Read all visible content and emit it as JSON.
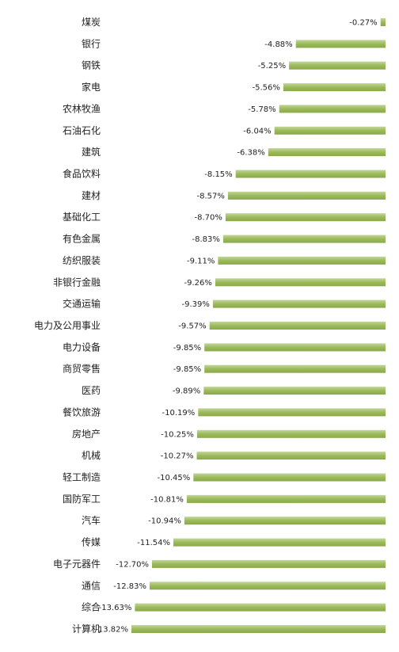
{
  "chart_data": {
    "type": "bar",
    "orientation": "horizontal",
    "categories": [
      "煤炭",
      "银行",
      "钢铁",
      "家电",
      "农林牧渔",
      "石油石化",
      "建筑",
      "食品饮料",
      "建材",
      "基础化工",
      "有色金属",
      "纺织服装",
      "非银行金融",
      "交通运输",
      "电力及公用事业",
      "电力设备",
      "商贸零售",
      "医药",
      "餐饮旅游",
      "房地产",
      "机械",
      "轻工制造",
      "国防军工",
      "汽车",
      "传媒",
      "电子元器件",
      "通信",
      "综合",
      "计算机"
    ],
    "values": [
      -0.27,
      -4.88,
      -5.25,
      -5.56,
      -5.78,
      -6.04,
      -6.38,
      -8.15,
      -8.57,
      -8.7,
      -8.83,
      -9.11,
      -9.26,
      -9.39,
      -9.57,
      -9.85,
      -9.85,
      -9.89,
      -10.19,
      -10.25,
      -10.27,
      -10.45,
      -10.81,
      -10.94,
      -11.54,
      -12.7,
      -12.83,
      -13.63,
      -13.82
    ],
    "value_labels": [
      "-0.27%",
      "-4.88%",
      "-5.25%",
      "-5.56%",
      "-5.78%",
      "-6.04%",
      "-6.38%",
      "-8.15%",
      "-8.57%",
      "-8.70%",
      "-8.83%",
      "-9.11%",
      "-9.26%",
      "-9.39%",
      "-9.57%",
      "-9.85%",
      "-9.85%",
      "-9.89%",
      "-10.19%",
      "-10.25%",
      "-10.27%",
      "-10.45%",
      "-10.81%",
      "-10.94%",
      "-11.54%",
      "-12.70%",
      "-12.83%",
      "-13.63%",
      "-13.82%"
    ],
    "unit": "%",
    "bar_color": "#9bbb59",
    "bar_color_light": "#c3d69b",
    "xlim": [
      -13.82,
      0
    ],
    "grid": false,
    "legend": "none"
  }
}
